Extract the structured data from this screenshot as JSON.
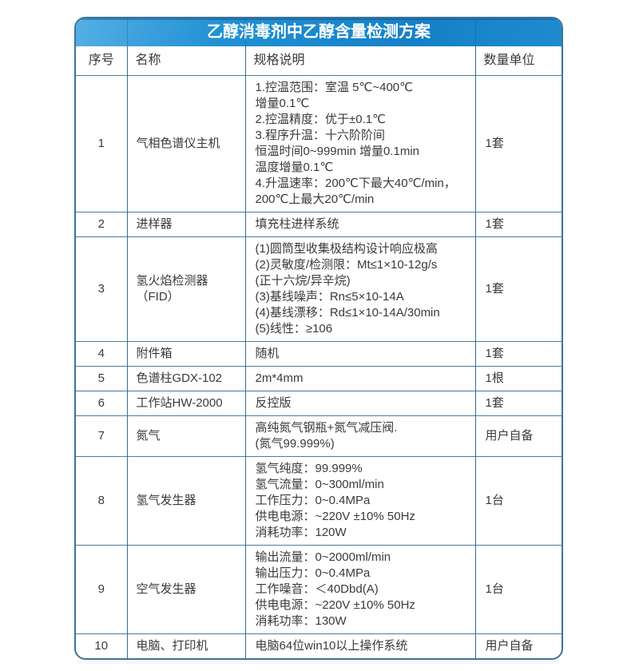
{
  "page": {
    "background": "#ffffff"
  },
  "colors": {
    "title_gradient_start": "#55afe4",
    "title_gradient_end": "#1580c6",
    "title_text": "#ffffff",
    "grid_border": "#4a7d9c",
    "outer_border": "#3e7396",
    "body_text": "#3a3a3a"
  },
  "table": {
    "title": "乙醇消毒剂中乙醇含量检测方案",
    "headers": [
      "序号",
      "名称",
      "规格说明",
      "数量单位"
    ],
    "rows": [
      {
        "no": "1",
        "name": "气相色谱仪主机",
        "spec": [
          "1.控温范围：室温 5℃~400℃",
          "增量0.1℃",
          "2.控温精度：优于±0.1℃",
          "3.程序升温：十六阶阶间",
          "恒温时间0~999min 增量0.1min",
          "温度增量0.1℃",
          "4.升温速率：200℃下最大40℃/min，",
          "200℃上最大20℃/min"
        ],
        "qty": "1套"
      },
      {
        "no": "2",
        "name": "进样器",
        "spec": [
          "填充柱进样系统"
        ],
        "qty": "1套"
      },
      {
        "no": "3",
        "name": "氢火焰检测器（FID）",
        "spec": [
          "(1)圆筒型收集极结构设计响应极高",
          "(2)灵敏度/检测限：Mt≤1×10-12g/s",
          "(正十六烷/异辛烷)",
          "(3)基线噪声：Rn≤5×10-14A",
          "(4)基线漂移：Rd≤1×10-14A/30min",
          "(5)线性：≥106"
        ],
        "qty": "1套"
      },
      {
        "no": "4",
        "name": "附件箱",
        "spec": [
          "随机"
        ],
        "qty": "1套"
      },
      {
        "no": "5",
        "name": "色谱柱GDX-102",
        "spec": [
          "2m*4mm"
        ],
        "qty": "1根"
      },
      {
        "no": "6",
        "name": "工作站HW-2000",
        "spec": [
          "反控版"
        ],
        "qty": "1套"
      },
      {
        "no": "7",
        "name": "氮气",
        "spec": [
          "高纯氮气钢瓶+氮气减压阀.",
          "(氮气99.999%)"
        ],
        "qty": "用户自备"
      },
      {
        "no": "8",
        "name": "氢气发生器",
        "spec": [
          "氢气纯度：99.999%",
          "氢气流量：0~300ml/min",
          "工作压力：0~0.4MPa",
          "供电电源：~220V ±10% 50Hz",
          "消耗功率：120W"
        ],
        "qty": "1台"
      },
      {
        "no": "9",
        "name": "空气发生器",
        "spec": [
          "输出流量：0~2000ml/min",
          "输出压力：0~0.4MPa",
          "工作噪音：＜40Dbd(A)",
          "供电电源：~220V ±10% 50Hz",
          "消耗功率：130W"
        ],
        "qty": "1台"
      },
      {
        "no": "10",
        "name": "电脑、打印机",
        "spec": [
          "电脑64位win10以上操作系统"
        ],
        "qty": "用户自备"
      }
    ]
  }
}
